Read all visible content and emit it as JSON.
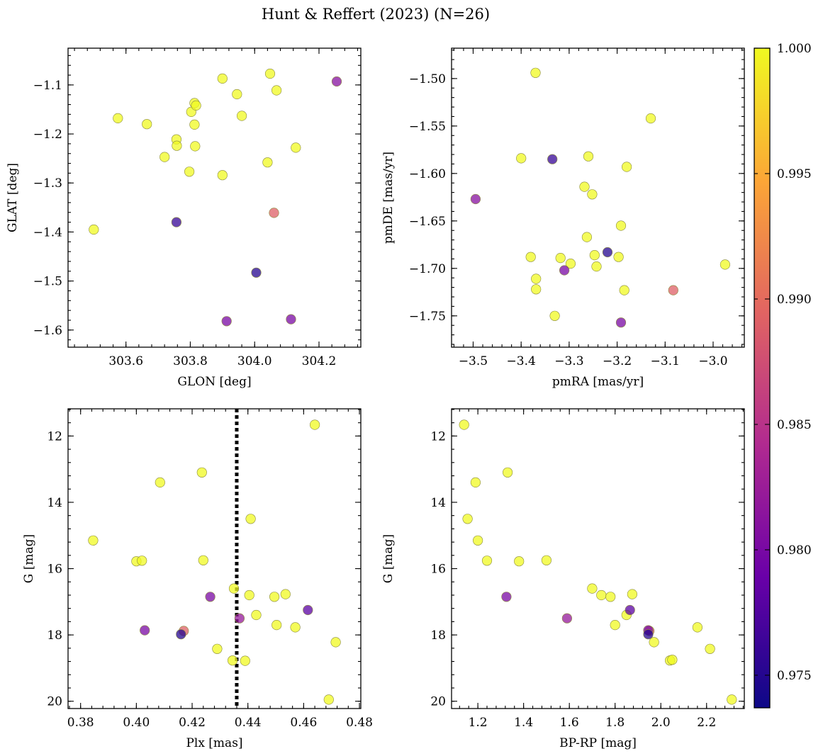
{
  "figure": {
    "title": "Hunt & Reffert (2023) (N=26)"
  },
  "colorbar": {
    "vmin": 0.9737,
    "vmax": 1.0,
    "ticks": [
      0.975,
      0.98,
      0.985,
      0.99,
      0.995,
      1.0
    ],
    "tick_labels": [
      "0.975",
      "0.980",
      "0.985",
      "0.990",
      "0.995",
      "1.000"
    ],
    "colormap": "plasma",
    "colormap_stops": [
      "#0d0887",
      "#6a00a8",
      "#b12a90",
      "#e16462",
      "#fca636",
      "#f0f921"
    ],
    "point_alpha": 0.75
  },
  "chart_data": [
    {
      "type": "scatter",
      "id": "tl",
      "xlabel": "GLON [deg]",
      "ylabel": "GLAT [deg]",
      "xlim": [
        303.42,
        304.33
      ],
      "ylim": [
        -1.635,
        -1.025
      ],
      "xticks": [
        303.6,
        303.8,
        304.0,
        304.2
      ],
      "xtick_labels": [
        "303.6",
        "303.8",
        "304.0",
        "304.2"
      ],
      "xminor": 0.04,
      "yticks": [
        -1.6,
        -1.5,
        -1.4,
        -1.3,
        -1.2,
        -1.1
      ],
      "ytick_labels": [
        "−1.6",
        "−1.5",
        "−1.4",
        "−1.3",
        "−1.2",
        "−1.1"
      ],
      "yminor": 0.02,
      "points": [
        [
          303.5,
          -1.395,
          1.0
        ],
        [
          303.575,
          -1.168,
          1.0
        ],
        [
          303.665,
          -1.18,
          1.0
        ],
        [
          303.72,
          -1.247,
          1.0
        ],
        [
          303.757,
          -1.211,
          1.0
        ],
        [
          303.758,
          -1.224,
          1.0
        ],
        [
          303.757,
          -1.38,
          0.976
        ],
        [
          303.797,
          -1.277,
          1.0
        ],
        [
          303.803,
          -1.155,
          1.0
        ],
        [
          303.813,
          -1.137,
          1.0
        ],
        [
          303.818,
          -1.142,
          1.0
        ],
        [
          303.813,
          -1.181,
          1.0
        ],
        [
          303.815,
          -1.225,
          1.0
        ],
        [
          303.9,
          -1.087,
          1.0
        ],
        [
          303.9,
          -1.284,
          1.0
        ],
        [
          303.913,
          -1.582,
          0.98
        ],
        [
          303.945,
          -1.119,
          1.0
        ],
        [
          303.96,
          -1.163,
          1.0
        ],
        [
          304.005,
          -1.483,
          0.975
        ],
        [
          304.04,
          -1.258,
          1.0
        ],
        [
          304.048,
          -1.077,
          1.0
        ],
        [
          304.06,
          -1.361,
          0.989
        ],
        [
          304.068,
          -1.111,
          1.0
        ],
        [
          304.113,
          -1.578,
          0.98
        ],
        [
          304.128,
          -1.228,
          1.0
        ],
        [
          304.255,
          -1.093,
          0.981
        ]
      ]
    },
    {
      "type": "scatter",
      "id": "tr",
      "xlabel": "pmRA [mas/yr]",
      "ylabel": "pmDE [mas/yr]",
      "xlim": [
        -3.545,
        -2.935
      ],
      "ylim": [
        -1.783,
        -1.468
      ],
      "xticks": [
        -3.5,
        -3.4,
        -3.3,
        -3.2,
        -3.1,
        -3.0
      ],
      "xtick_labels": [
        "−3.5",
        "−3.4",
        "−3.3",
        "−3.2",
        "−3.1",
        "−3.0"
      ],
      "xminor": 0.02,
      "yticks": [
        -1.75,
        -1.7,
        -1.65,
        -1.6,
        -1.55,
        -1.5
      ],
      "ytick_labels": [
        "−1.75",
        "−1.70",
        "−1.65",
        "−1.60",
        "−1.55",
        "−1.50"
      ],
      "yminor": 0.01,
      "points": [
        [
          -3.495,
          -1.627,
          0.981
        ],
        [
          -3.4,
          -1.584,
          1.0
        ],
        [
          -3.38,
          -1.688,
          1.0
        ],
        [
          -3.37,
          -1.494,
          1.0
        ],
        [
          -3.369,
          -1.711,
          1.0
        ],
        [
          -3.369,
          -1.722,
          1.0
        ],
        [
          -3.335,
          -1.585,
          0.976
        ],
        [
          -3.33,
          -1.75,
          1.0
        ],
        [
          -3.318,
          -1.689,
          1.0
        ],
        [
          -3.31,
          -1.702,
          0.98
        ],
        [
          -3.297,
          -1.695,
          1.0
        ],
        [
          -3.268,
          -1.614,
          1.0
        ],
        [
          -3.263,
          -1.667,
          1.0
        ],
        [
          -3.26,
          -1.582,
          1.0
        ],
        [
          -3.252,
          -1.622,
          1.0
        ],
        [
          -3.247,
          -1.686,
          1.0
        ],
        [
          -3.243,
          -1.698,
          1.0
        ],
        [
          -3.22,
          -1.683,
          0.975
        ],
        [
          -3.197,
          -1.688,
          1.0
        ],
        [
          -3.192,
          -1.655,
          1.0
        ],
        [
          -3.192,
          -1.757,
          0.98
        ],
        [
          -3.185,
          -1.723,
          1.0
        ],
        [
          -3.18,
          -1.593,
          1.0
        ],
        [
          -3.13,
          -1.542,
          1.0
        ],
        [
          -3.083,
          -1.723,
          0.989
        ],
        [
          -2.975,
          -1.696,
          1.0
        ]
      ]
    },
    {
      "type": "scatter",
      "id": "bl",
      "xlabel": "Plx [mas]",
      "ylabel": "G [mag]",
      "xlim": [
        0.3755,
        0.4805
      ],
      "ylim": [
        20.22,
        11.18
      ],
      "xticks": [
        0.38,
        0.4,
        0.42,
        0.44,
        0.46,
        0.48
      ],
      "xtick_labels": [
        "0.38",
        "0.40",
        "0.42",
        "0.44",
        "0.46",
        "0.48"
      ],
      "xminor": 0.004,
      "yticks": [
        12,
        14,
        16,
        18,
        20
      ],
      "ytick_labels": [
        "12",
        "14",
        "16",
        "18",
        "20"
      ],
      "yminor": 0.4,
      "vline": 0.436,
      "points": [
        [
          0.3845,
          15.15,
          1.0
        ],
        [
          0.4,
          15.78,
          1.0
        ],
        [
          0.402,
          15.76,
          1.0
        ],
        [
          0.403,
          17.86,
          0.98
        ],
        [
          0.4085,
          13.4,
          1.0
        ],
        [
          0.416,
          17.98,
          0.975
        ],
        [
          0.417,
          17.88,
          0.989
        ],
        [
          0.4235,
          13.1,
          1.0
        ],
        [
          0.424,
          15.75,
          1.0
        ],
        [
          0.4265,
          16.85,
          0.98
        ],
        [
          0.429,
          18.42,
          1.0
        ],
        [
          0.4345,
          18.77,
          1.0
        ],
        [
          0.435,
          16.6,
          1.0
        ],
        [
          0.437,
          17.5,
          0.982
        ],
        [
          0.439,
          18.78,
          1.0
        ],
        [
          0.4405,
          16.8,
          1.0
        ],
        [
          0.441,
          14.5,
          1.0
        ],
        [
          0.443,
          17.4,
          1.0
        ],
        [
          0.4495,
          16.85,
          1.0
        ],
        [
          0.4503,
          17.7,
          1.0
        ],
        [
          0.4535,
          16.77,
          1.0
        ],
        [
          0.457,
          17.77,
          1.0
        ],
        [
          0.4615,
          17.25,
          0.978
        ],
        [
          0.464,
          11.66,
          1.0
        ],
        [
          0.469,
          19.95,
          1.0
        ],
        [
          0.4715,
          18.22,
          1.0
        ]
      ]
    },
    {
      "type": "scatter",
      "id": "br",
      "xlabel": "BP-RP [mag]",
      "ylabel": "G [mag]",
      "xlim": [
        1.085,
        2.365
      ],
      "ylim": [
        20.22,
        11.18
      ],
      "xticks": [
        1.2,
        1.4,
        1.6,
        1.8,
        2.0,
        2.2
      ],
      "xtick_labels": [
        "1.2",
        "1.4",
        "1.6",
        "1.8",
        "2.0",
        "2.2"
      ],
      "xminor": 0.04,
      "yticks": [
        12,
        14,
        16,
        18,
        20
      ],
      "ytick_labels": [
        "12",
        "14",
        "16",
        "18",
        "20"
      ],
      "yminor": 0.4,
      "points": [
        [
          1.14,
          11.66,
          1.0
        ],
        [
          1.155,
          14.5,
          1.0
        ],
        [
          1.19,
          13.4,
          1.0
        ],
        [
          1.2,
          15.15,
          1.0
        ],
        [
          1.24,
          15.76,
          1.0
        ],
        [
          1.325,
          16.85,
          0.98
        ],
        [
          1.33,
          13.1,
          1.0
        ],
        [
          1.38,
          15.78,
          1.0
        ],
        [
          1.5,
          15.75,
          1.0
        ],
        [
          1.59,
          17.5,
          0.982
        ],
        [
          1.7,
          16.6,
          1.0
        ],
        [
          1.74,
          16.8,
          1.0
        ],
        [
          1.78,
          16.85,
          1.0
        ],
        [
          1.8,
          17.7,
          1.0
        ],
        [
          1.85,
          17.4,
          1.0
        ],
        [
          1.865,
          17.25,
          0.978
        ],
        [
          1.875,
          16.77,
          1.0
        ],
        [
          1.945,
          17.86,
          0.98
        ],
        [
          1.945,
          17.98,
          0.975
        ],
        [
          1.95,
          17.88,
          0.989
        ],
        [
          1.97,
          18.22,
          1.0
        ],
        [
          2.04,
          18.77,
          1.0
        ],
        [
          2.05,
          18.75,
          1.0
        ],
        [
          2.16,
          17.77,
          1.0
        ],
        [
          2.215,
          18.42,
          1.0
        ],
        [
          2.31,
          19.95,
          1.0
        ]
      ]
    }
  ]
}
